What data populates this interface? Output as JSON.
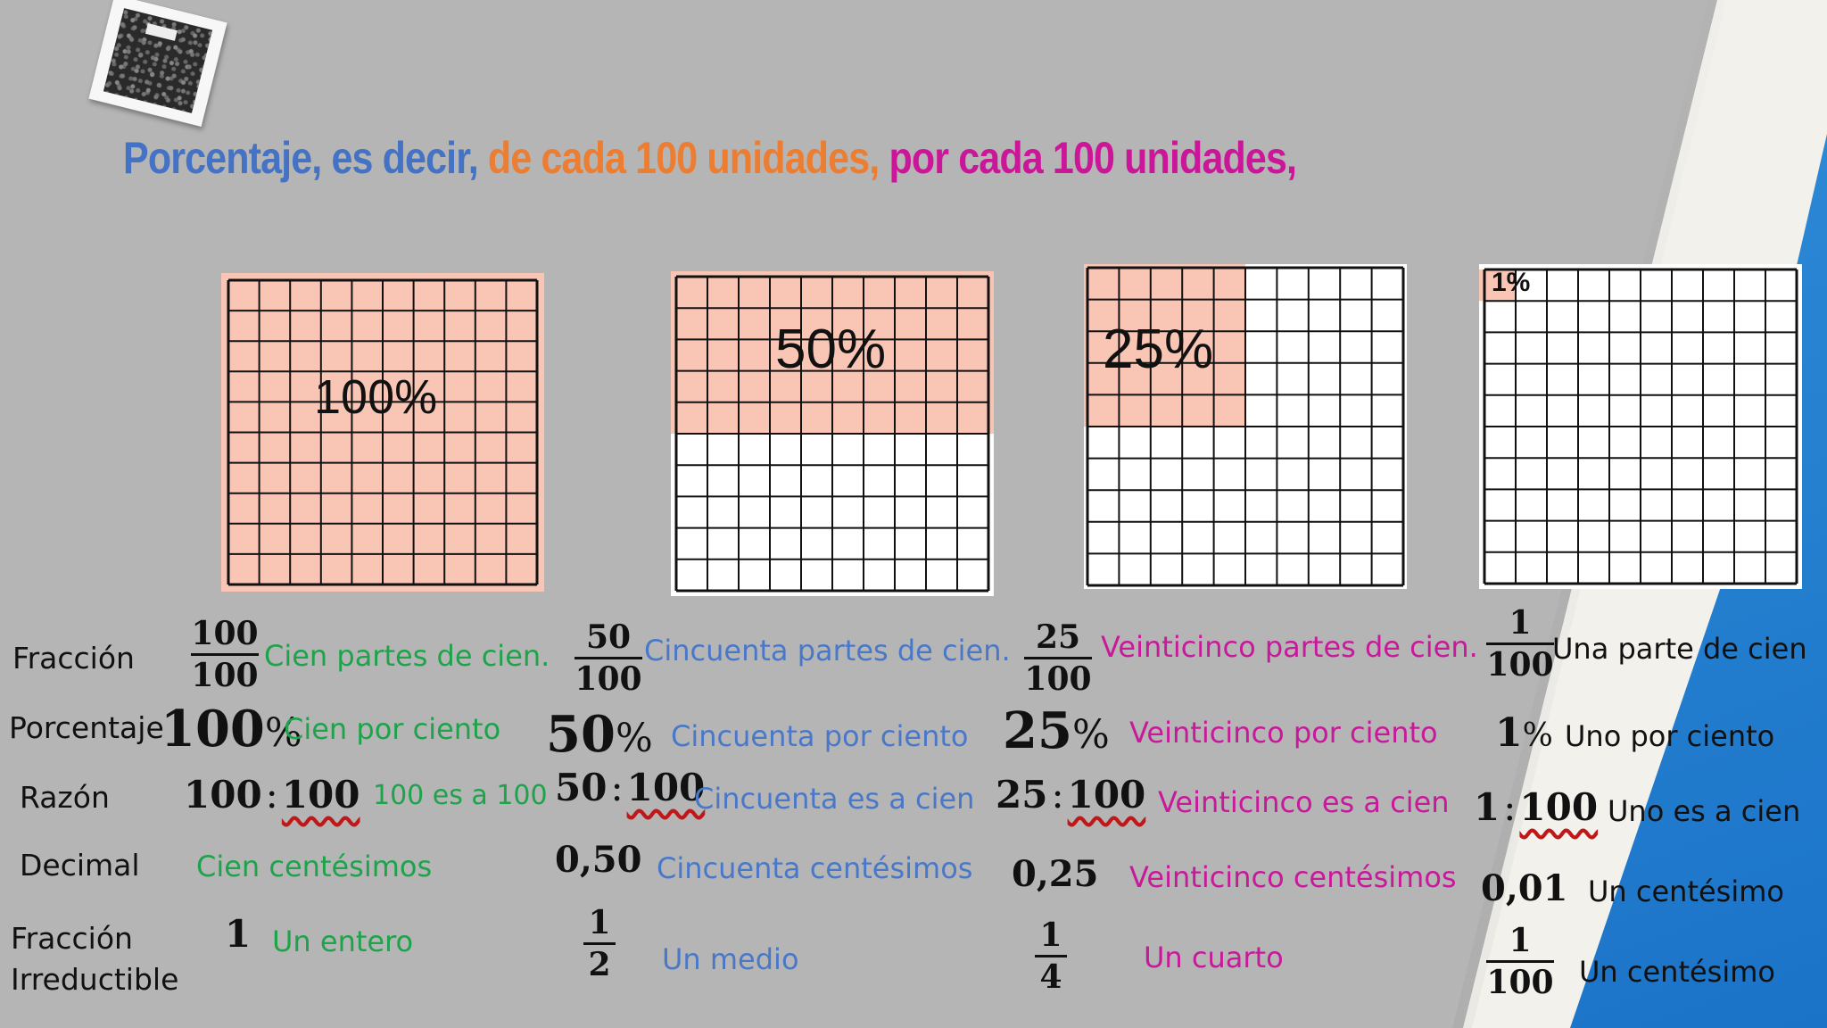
{
  "title": {
    "part1": "Porcentaje, es decir,",
    "part2": "de cada 100 unidades,",
    "part3": "por cada 100 unidades,"
  },
  "colors": {
    "blue": "#4472c4",
    "orange": "#ed7d31",
    "magenta": "#cc1699",
    "green": "#1ea34b",
    "shade": "#f9c5b4"
  },
  "grids": [
    {
      "label": "100%",
      "shaded_fraction": 1.0
    },
    {
      "label": "50%",
      "shaded_fraction": 0.5
    },
    {
      "label": "25%",
      "shaded_fraction": 0.25
    },
    {
      "label": "1%",
      "shaded_fraction": 0.01
    }
  ],
  "row_labels": {
    "fraccion": "Fracción",
    "porcentaje": "Porcentaje",
    "razon": "Razón",
    "decimal": "Decimal",
    "irreductible_1": "Fracción",
    "irreductible_2": "Irreductible"
  },
  "columns": [
    {
      "frac_num": "100",
      "frac_den": "100",
      "frac_text": "Cien partes de cien.",
      "pct_num": "100",
      "pct_sign": "%",
      "pct_text": "Cien por ciento",
      "ratio_a": "100",
      "ratio_sep": ":",
      "ratio_b": "100",
      "ratio_text": "100 es a 100",
      "decimal_val": "",
      "decimal_text": "Cien centésimos",
      "irr_value": "1",
      "irr_text": "Un entero"
    },
    {
      "frac_num": "50",
      "frac_den": "100",
      "frac_text": "Cincuenta partes de cien.",
      "pct_num": "50",
      "pct_sign": "%",
      "pct_text": "Cincuenta por ciento",
      "ratio_a": "50",
      "ratio_sep": ":",
      "ratio_b": "100",
      "ratio_text": "Cincuenta es a cien",
      "decimal_val": "0,50",
      "decimal_text": "Cincuenta centésimos",
      "irr_num": "1",
      "irr_den": "2",
      "irr_text": "Un medio"
    },
    {
      "frac_num": "25",
      "frac_den": "100",
      "frac_text": "Veinticinco partes de cien.",
      "pct_num": "25",
      "pct_sign": "%",
      "pct_text": "Veinticinco por ciento",
      "ratio_a": "25",
      "ratio_sep": ":",
      "ratio_b": "100",
      "ratio_text": "Veinticinco es a cien",
      "decimal_val": "0,25",
      "decimal_text": "Veinticinco centésimos",
      "irr_num": "1",
      "irr_den": "4",
      "irr_text": "Un cuarto"
    },
    {
      "frac_num": "1",
      "frac_den": "100",
      "frac_text": "Una parte  de cien",
      "pct_num": "1",
      "pct_sign": "%",
      "pct_text": "Uno por ciento",
      "ratio_a": "1",
      "ratio_sep": ":",
      "ratio_b": "100",
      "ratio_text": "Uno es a cien",
      "decimal_val": "0,01",
      "decimal_text": "Un centésimo",
      "irr_num": "1",
      "irr_den": "100",
      "irr_text": "Un centésimo"
    }
  ]
}
